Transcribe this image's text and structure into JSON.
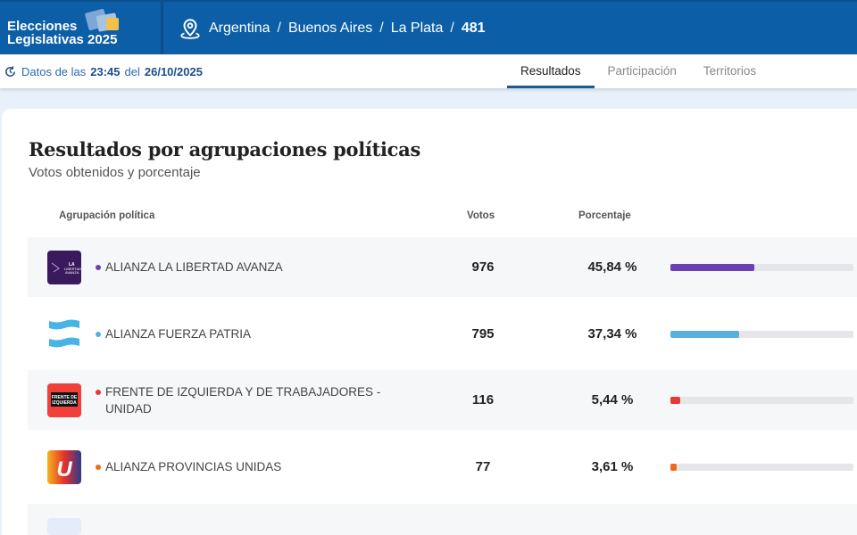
{
  "header": {
    "brand_line1": "Elecciones",
    "brand_line2": "Legislativas 2025",
    "breadcrumb": [
      "Argentina",
      "Buenos Aires",
      "La Plata"
    ],
    "breadcrumb_current": "481",
    "separator": "/"
  },
  "status": {
    "prefix": "Datos de las",
    "time": "23:45",
    "mid": "del",
    "date": "26/10/2025"
  },
  "tabs": [
    {
      "label": "Resultados",
      "active": true
    },
    {
      "label": "Participación"
    },
    {
      "label": "Territorios"
    }
  ],
  "section": {
    "title": "Resultados por agrupaciones políticas",
    "subtitle": "Votos obtenidos y porcentaje"
  },
  "table": {
    "headers": {
      "party": "Agrupación política",
      "votes": "Votos",
      "percent": "Porcentaje"
    },
    "rows": [
      {
        "name": "ALIANZA LA LIBERTAD AVANZA",
        "votes": "976",
        "percent": "45,84 %",
        "value": 45.84,
        "color": "#6c3fb5",
        "logo_bg": "#3a1a5c"
      },
      {
        "name": "ALIANZA FUERZA PATRIA",
        "votes": "795",
        "percent": "37,34 %",
        "value": 37.34,
        "color": "#5aafe0",
        "logo_bg": "#ffffff"
      },
      {
        "name": "FRENTE DE IZQUIERDA Y DE TRABAJADORES - UNIDAD",
        "votes": "116",
        "percent": "5,44 %",
        "value": 5.44,
        "color": "#e53935",
        "logo_bg": "#f0403a"
      },
      {
        "name": "ALIANZA PROVINCIAS UNIDAS",
        "votes": "77",
        "percent": "3,61 %",
        "value": 3.61,
        "color": "#f06a1c",
        "logo_bg": "#f4a020"
      }
    ]
  },
  "logos": {
    "fit": "FRENTE DE IZQUIERDA",
    "u": "U",
    "lla": "LA LIBERTAD AVANZA"
  }
}
